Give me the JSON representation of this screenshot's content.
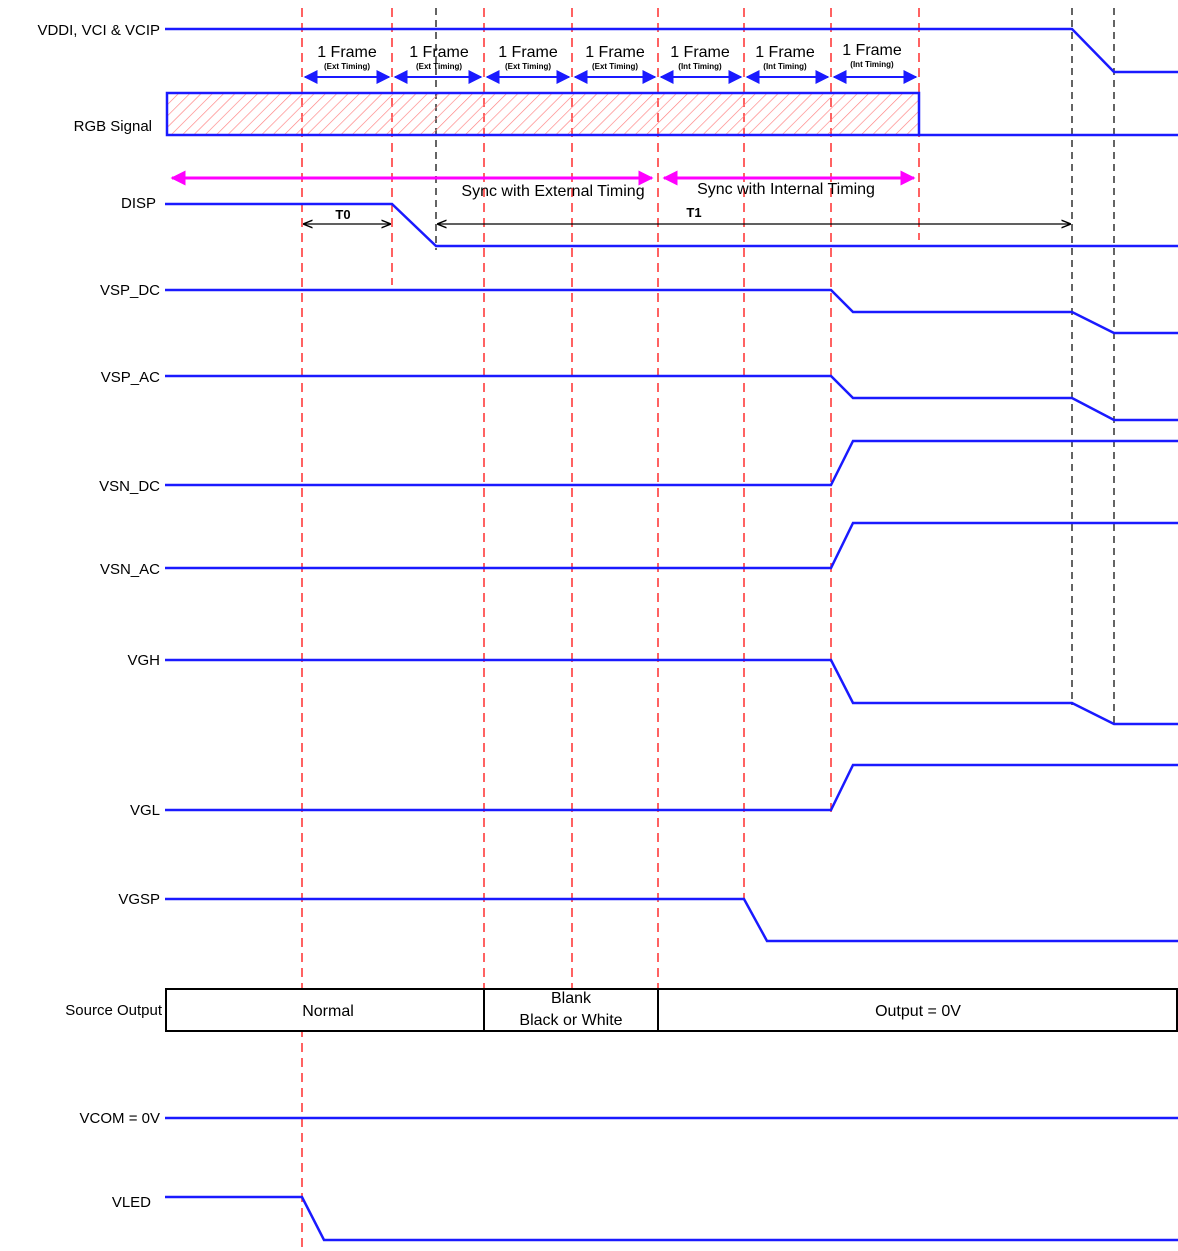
{
  "signals": {
    "vddi": "VDDI, VCI & VCIP",
    "rgb": "RGB Signal",
    "disp": "DISP",
    "vsp_dc": "VSP_DC",
    "vsp_ac": "VSP_AC",
    "vsn_dc": "VSN_DC",
    "vsn_ac": "VSN_AC",
    "vgh": "VGH",
    "vgl": "VGL",
    "vgsp": "VGSP",
    "source_output": "Source Output",
    "vcom": "VCOM = 0V",
    "vled": "VLED"
  },
  "frames": [
    {
      "label": "1 Frame",
      "timing": "(Ext Timing)"
    },
    {
      "label": "1 Frame",
      "timing": "(Ext Timing)"
    },
    {
      "label": "1 Frame",
      "timing": "(Ext Timing)"
    },
    {
      "label": "1 Frame",
      "timing": "(Ext Timing)"
    },
    {
      "label": "1 Frame",
      "timing": "(Int Timing)"
    },
    {
      "label": "1 Frame",
      "timing": "(Int Timing)"
    },
    {
      "label": "1 Frame",
      "timing": "(Int Timing)"
    }
  ],
  "sync": {
    "external": "Sync with External Timing",
    "internal": "Sync with Internal Timing"
  },
  "timing_labels": {
    "t0": "T0",
    "t1": "T1"
  },
  "source_output": {
    "normal": "Normal",
    "blank_line1": "Blank",
    "blank_line2": "Black or White",
    "output": "Output = 0V"
  },
  "colors": {
    "signal": "#1a1aff",
    "frame_marker": "#ff3b3b",
    "sync_arrow": "#ff00ff",
    "hatch": "#ff8080"
  }
}
